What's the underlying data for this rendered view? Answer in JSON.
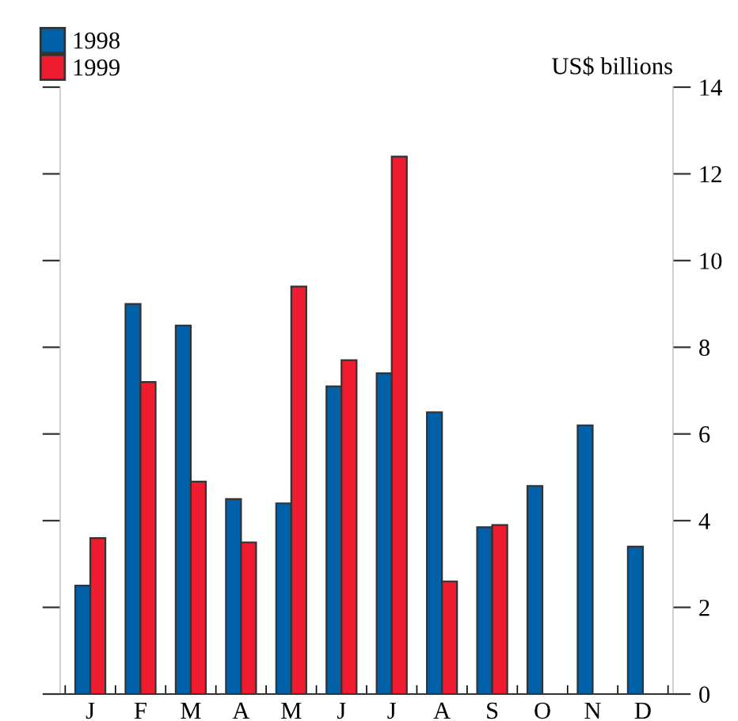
{
  "chart_data": {
    "type": "bar",
    "ylabel": "US$ billions",
    "categories": [
      "J",
      "F",
      "M",
      "A",
      "M",
      "J",
      "J",
      "A",
      "S",
      "O",
      "N",
      "D"
    ],
    "series": [
      {
        "name": "1998",
        "color": "#0060a8",
        "values": [
          2.5,
          9.0,
          8.5,
          4.5,
          4.4,
          7.1,
          7.4,
          6.5,
          3.85,
          4.8,
          6.2,
          3.4
        ]
      },
      {
        "name": "1999",
        "color": "#ee1c2e",
        "values": [
          3.6,
          7.2,
          4.9,
          3.5,
          9.4,
          7.7,
          12.4,
          2.6,
          3.9,
          null,
          null,
          null
        ]
      }
    ],
    "ylim": [
      0,
      14
    ],
    "yticks": [
      0,
      2,
      4,
      6,
      8,
      10,
      12,
      14
    ],
    "grid": false,
    "legend": "top left"
  }
}
